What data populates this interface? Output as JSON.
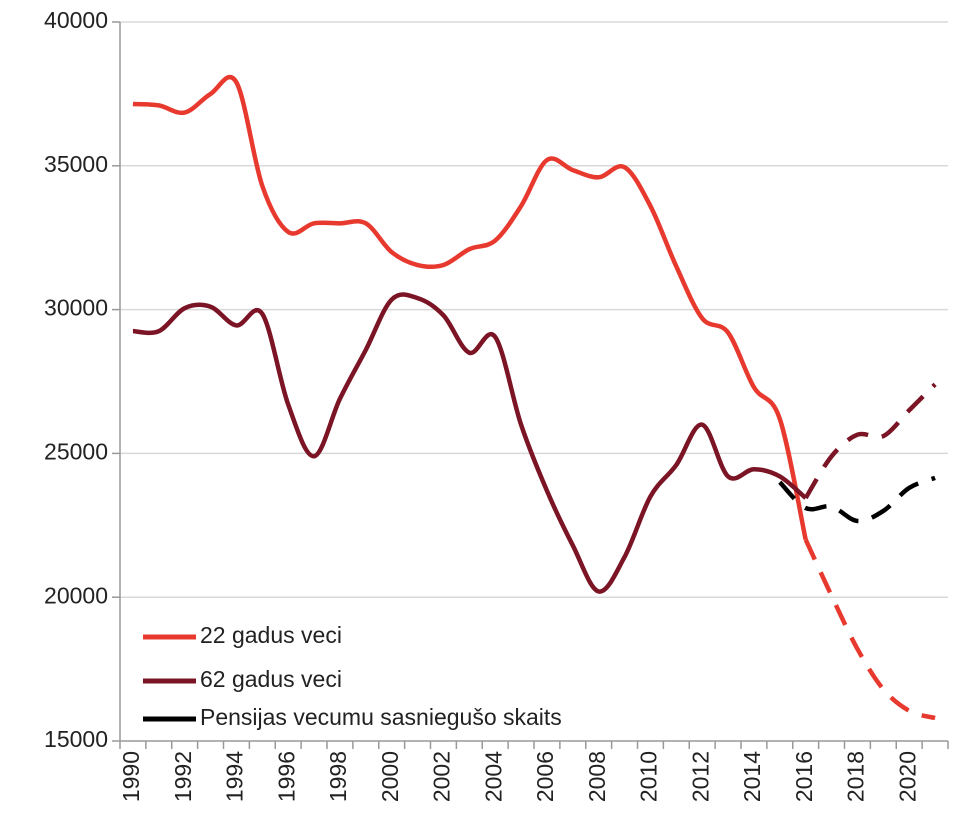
{
  "chart_data": {
    "type": "line",
    "categories": [
      "1990",
      null,
      "1992",
      null,
      "1994",
      null,
      "1996",
      null,
      "1998",
      null,
      "2000",
      null,
      "2002",
      null,
      "2004",
      null,
      "2006",
      null,
      "2008",
      null,
      "2010",
      null,
      "2012",
      null,
      "2014",
      null,
      "2016",
      null,
      "2018",
      null,
      "2020",
      null
    ],
    "forecast_from": "2016",
    "series": [
      {
        "name": "22 gadus veci",
        "color": "#e8392f",
        "values": [
          37150,
          37100,
          36850,
          37500,
          37900,
          34300,
          32700,
          33000,
          33000,
          33000,
          32000,
          31550,
          31550,
          32100,
          32400,
          33600,
          35200,
          34850,
          34600,
          34950,
          33600,
          31500,
          29700,
          29200,
          27300,
          26200,
          22000,
          20050,
          18200,
          16800,
          16050,
          15800
        ]
      },
      {
        "name": "62 gadus veci",
        "color": "#7b1424",
        "values": [
          29250,
          29250,
          30050,
          30100,
          29450,
          29850,
          26700,
          24900,
          26900,
          28600,
          30350,
          30400,
          29800,
          28500,
          29050,
          26000,
          23700,
          21800,
          20200,
          21400,
          23500,
          24600,
          26000,
          24200,
          24450,
          24200,
          23450,
          24900,
          25650,
          25600,
          26500,
          27400
        ]
      },
      {
        "name": "Pensijas vecumu sasniegušo skaits",
        "color": "#000000",
        "dashed": true,
        "values": [
          null,
          null,
          null,
          null,
          null,
          null,
          null,
          null,
          null,
          null,
          null,
          null,
          null,
          null,
          null,
          null,
          null,
          null,
          null,
          null,
          null,
          null,
          null,
          null,
          null,
          24000,
          23100,
          23150,
          22650,
          23000,
          23800,
          24150
        ]
      }
    ],
    "ylim": [
      15000,
      40000
    ],
    "yticks": [
      15000,
      20000,
      25000,
      30000,
      35000,
      40000
    ],
    "grid": true,
    "legend": "lower left"
  }
}
